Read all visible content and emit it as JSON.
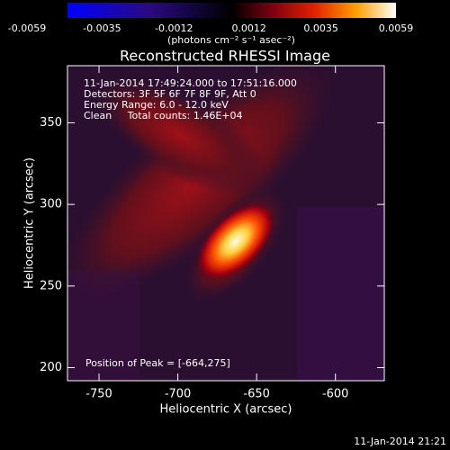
{
  "chart_data": {
    "type": "image",
    "title": "Reconstructed RHESSI Image",
    "colorbar": {
      "lim": [
        -0.0059,
        0.0059
      ],
      "ticks": [
        -0.0059,
        -0.0035,
        -0.0012,
        0.0012,
        0.0035,
        0.0059
      ],
      "label": "(photons cm⁻² s⁻¹ asec⁻²)"
    },
    "annotations": [
      "11-Jan-2014 17:49:24.000 to 17:51:16.000",
      "Detectors: 3F 5F 6F 7F 8F 9F, Att 0",
      "Energy Range: 6.0 - 12.0 keV",
      "Clean     Total counts: 1.46E+04"
    ],
    "peak_label": "Position of Peak = [-664,275]",
    "x_label": "Heliocentric X (arcsec)",
    "y_label": "Heliocentric Y (arcsec)",
    "xlim": [
      -770,
      -569
    ],
    "ylim": [
      192,
      385
    ],
    "xticks": [
      -750,
      -700,
      -650,
      -600
    ],
    "yticks": [
      200,
      250,
      300,
      350
    ],
    "timestamp": "11-Jan-2014 21:21"
  }
}
